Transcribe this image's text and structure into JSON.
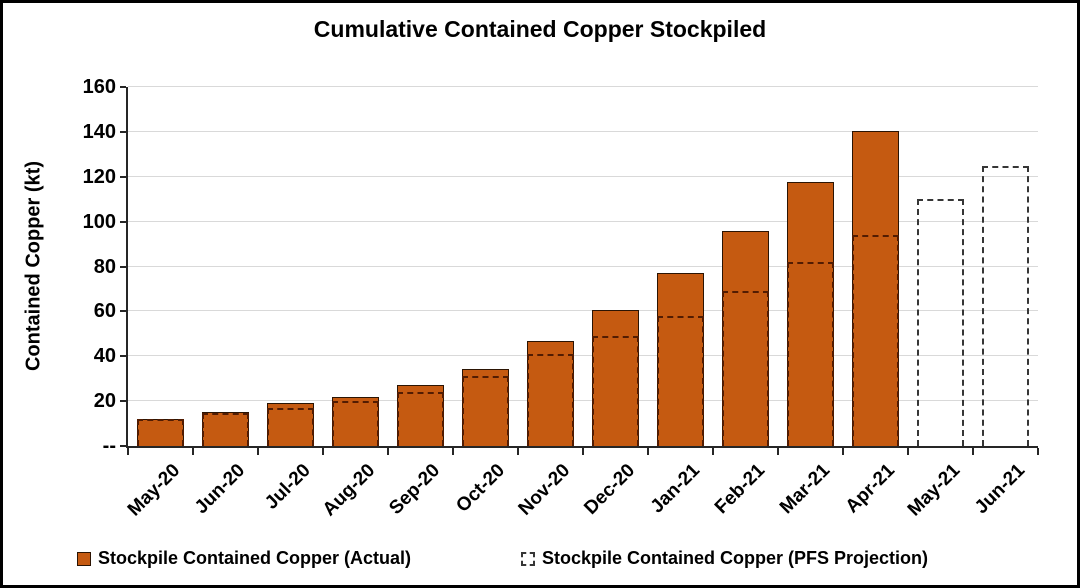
{
  "chart_data": {
    "type": "bar",
    "title": "Cumulative Contained Copper Stockpiled",
    "xlabel": "",
    "ylabel": "Contained Copper (kt)",
    "ylim": [
      0,
      160
    ],
    "ytick_interval": 20,
    "ytick_zero_label": "--",
    "grid": true,
    "legend_position": "bottom",
    "categories": [
      "May-20",
      "Jun-20",
      "Jul-20",
      "Aug-20",
      "Sep-20",
      "Oct-20",
      "Nov-20",
      "Dec-20",
      "Jan-21",
      "Feb-21",
      "Mar-21",
      "Apr-21",
      "May-21",
      "Jun-21"
    ],
    "series": [
      {
        "name": "Stockpile Contained Copper (Actual)",
        "style": "filled",
        "values": [
          12,
          15,
          19,
          22,
          27,
          34.5,
          47,
          60.5,
          77,
          96,
          117.5,
          140.5,
          null,
          null
        ]
      },
      {
        "name": "Stockpile Contained Copper (PFS Projection)",
        "style": "dashed-outline",
        "values": [
          12,
          14.5,
          17,
          20,
          24,
          31,
          41,
          49,
          58,
          69,
          82,
          94,
          110,
          125
        ]
      }
    ]
  },
  "colors": {
    "bar_fill": "#C55A11",
    "bar_border": "#2B1403",
    "pfs_dash_on_actual": "#521C02",
    "pfs_dash_standalone": "#363636",
    "gridline": "#D9D9D9",
    "axis": "#262626",
    "tick": "#262626",
    "text": "#000000",
    "background": "#FFFFFF",
    "frame_border": "#000000"
  },
  "legend": {
    "items": [
      {
        "label": "Stockpile Contained Copper (Actual)",
        "swatch": "filled-square"
      },
      {
        "label": "Stockpile Contained Copper (PFS Projection)",
        "swatch": "dashed-square"
      }
    ]
  }
}
